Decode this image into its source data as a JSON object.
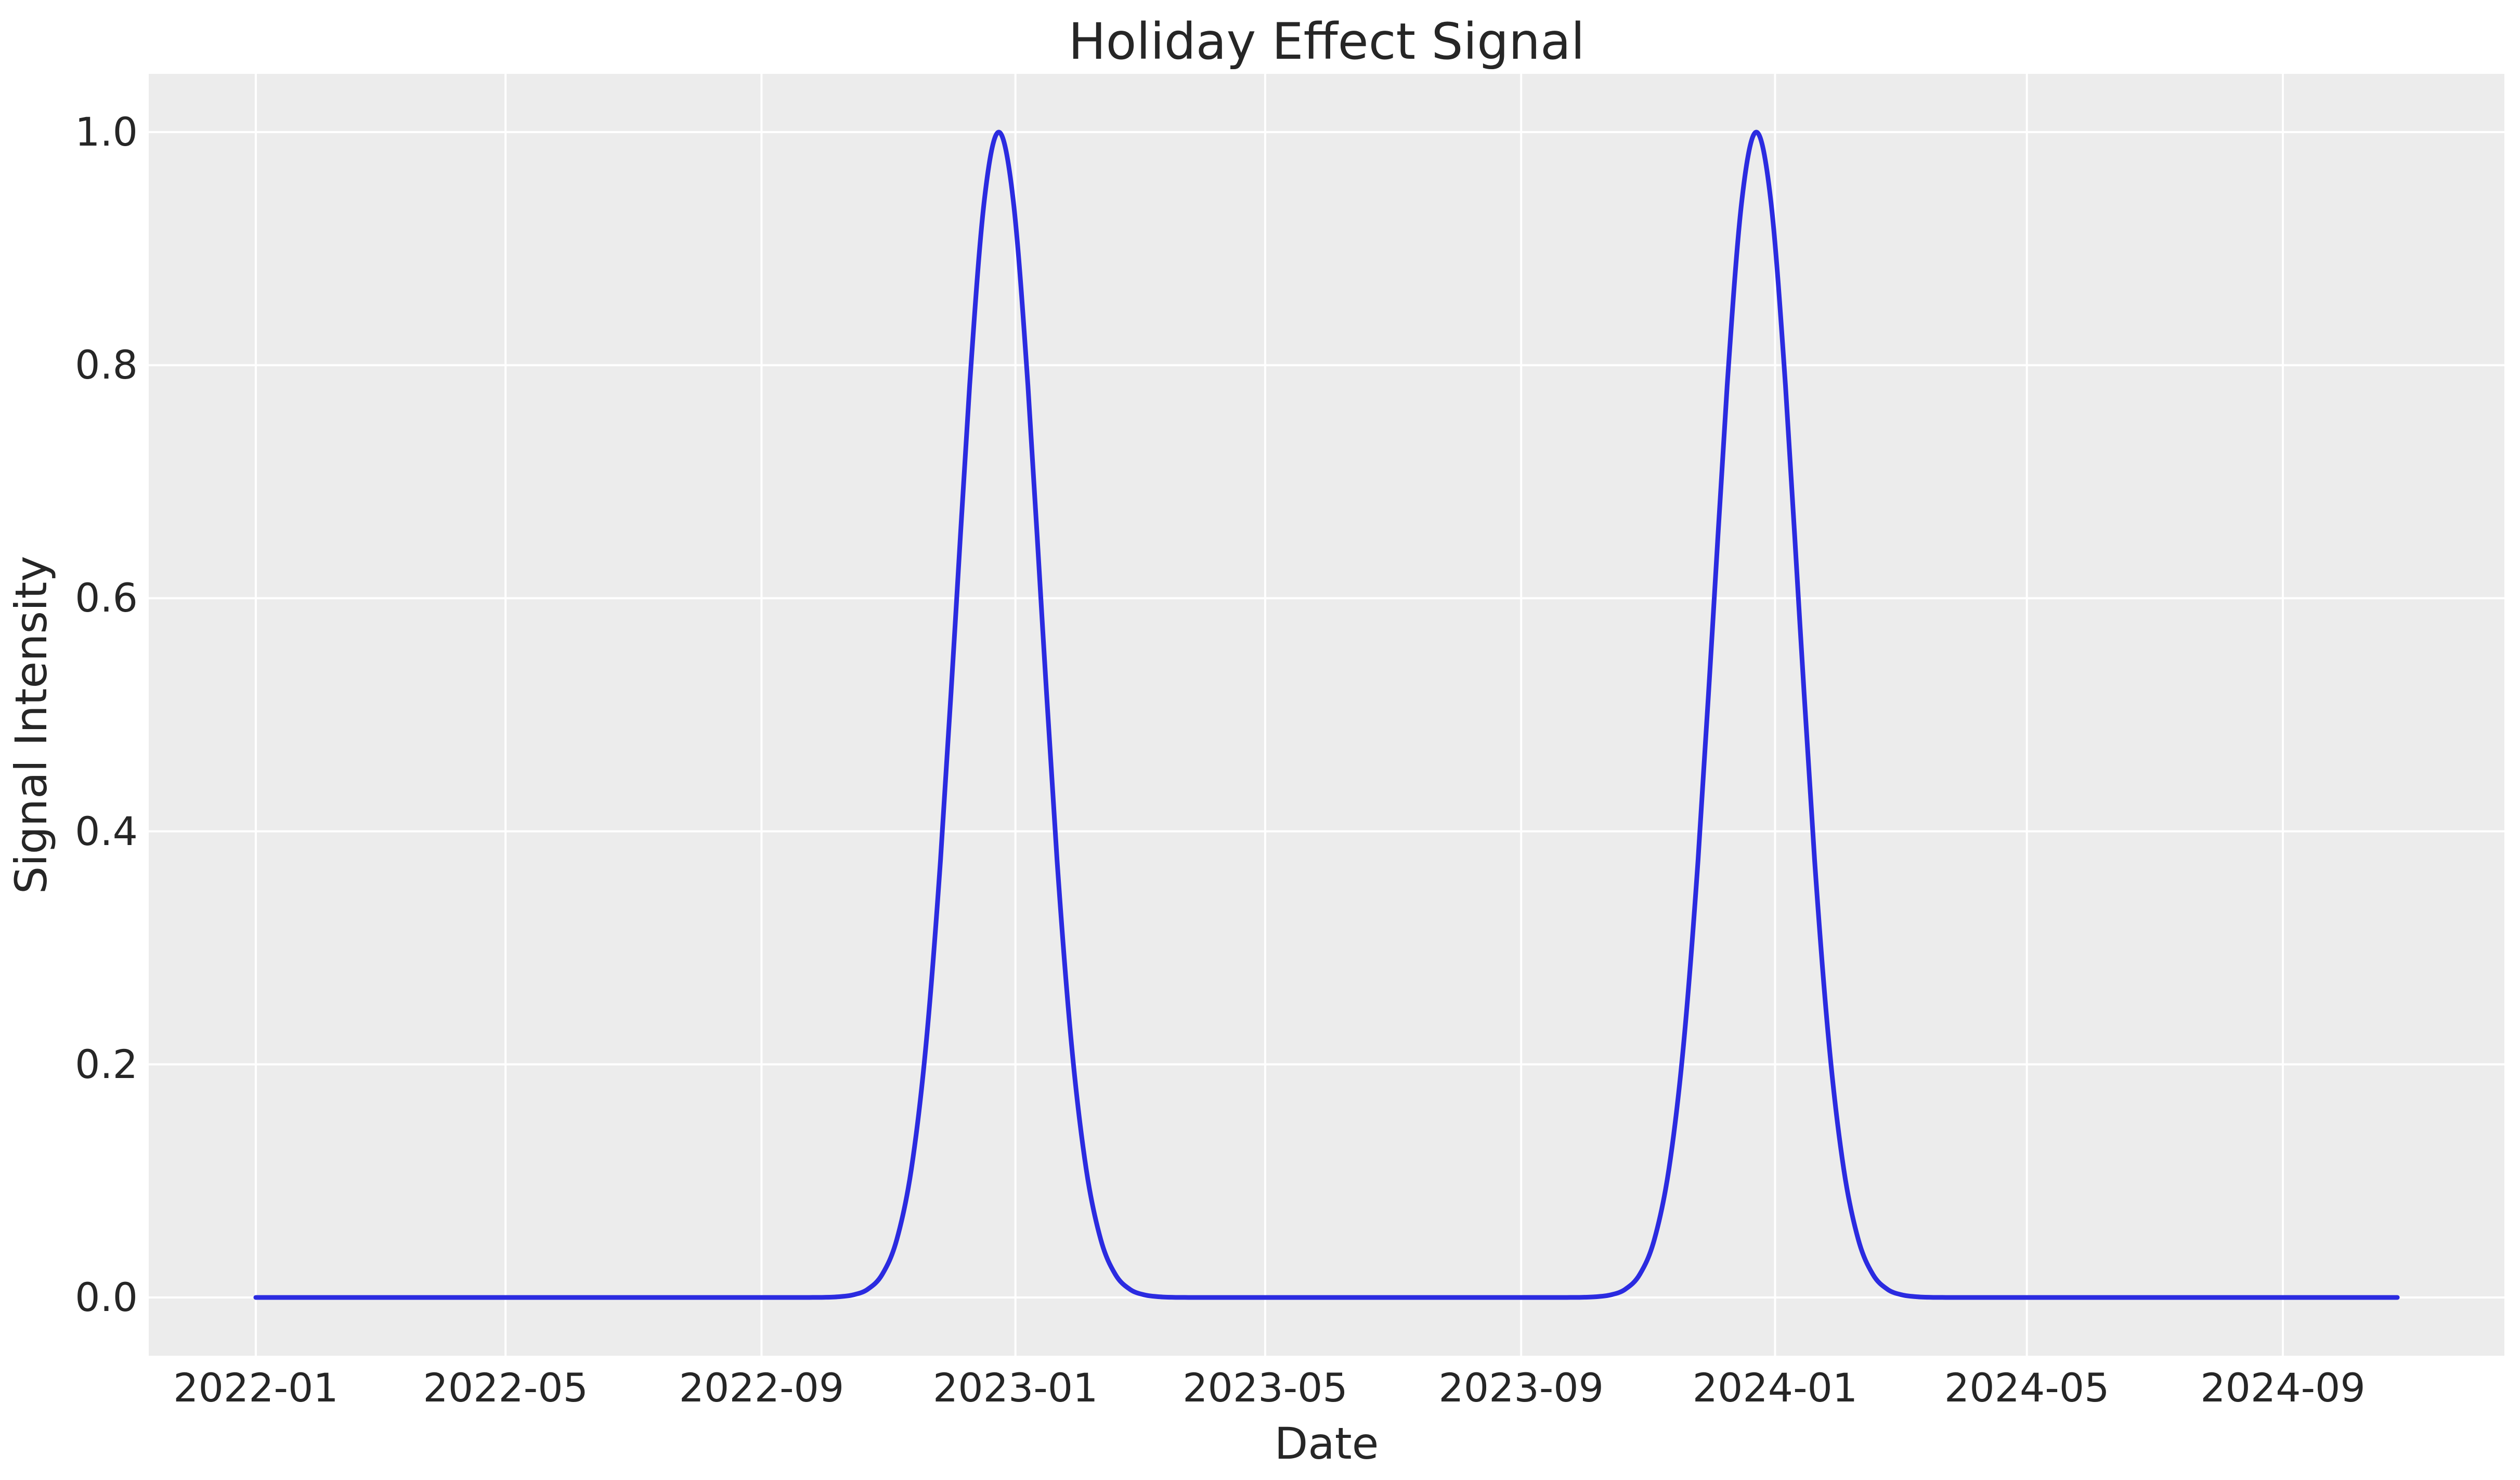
{
  "figure": {
    "title": "Holiday Effect Signal",
    "background_color": "#ffffff",
    "text_color": "#262626"
  },
  "chart_data": {
    "type": "line",
    "title": "Holiday Effect Signal",
    "xlabel": "Date",
    "ylabel": "Signal Intensity",
    "legend": "none",
    "grid": true,
    "grid_color": "#ffffff",
    "plot_background": "#ececec",
    "ylim": [
      -0.05,
      1.05
    ],
    "xlim_days": [
      -51.45,
      1080.45
    ],
    "y_ticks": [
      0.0,
      0.2,
      0.4,
      0.6,
      0.8,
      1.0
    ],
    "y_tick_labels": [
      "0.0",
      "0.2",
      "0.4",
      "0.6",
      "0.8",
      "1.0"
    ],
    "x_tick_days": [
      0,
      120,
      243,
      365,
      485,
      608,
      730,
      851,
      974
    ],
    "x_tick_labels": [
      "2022-01",
      "2022-05",
      "2022-09",
      "2023-01",
      "2023-05",
      "2023-09",
      "2024-01",
      "2024-05",
      "2024-09"
    ],
    "series": [
      {
        "name": "holiday-effect-signal",
        "color": "#2b2be0",
        "line_width": 9,
        "x_start_date": "2022-01-01",
        "x_end_date": "2024-10-26",
        "x_step_days": 7,
        "shape": "gaussian peaks, sigma 20 days, centered near Dec 24 of 2022 and 2023, baseline 0",
        "peaks": [
          {
            "date": "2022-12-24",
            "value": 1.0
          },
          {
            "date": "2023-12-23",
            "value": 1.0
          }
        ],
        "values": [
          0,
          0,
          0,
          0,
          0,
          0,
          0,
          0,
          0,
          0,
          0,
          0,
          0,
          0,
          0,
          0,
          0,
          0,
          0,
          0,
          0,
          0,
          0,
          0,
          0,
          0,
          0,
          0,
          0,
          0,
          0,
          0,
          0,
          0,
          0,
          0,
          0,
          0,
          0,
          0.0001,
          0.0006,
          0.0022,
          0.007,
          0.0198,
          0.0497,
          0.1102,
          0.2162,
          0.3753,
          0.5763,
          0.7827,
          0.9406,
          1.0,
          0.9406,
          0.7827,
          0.5763,
          0.3753,
          0.2162,
          0.1102,
          0.0497,
          0.0198,
          0.007,
          0.0022,
          0.0006,
          0.0001,
          0,
          0,
          0,
          0,
          0,
          0,
          0,
          0,
          0,
          0,
          0,
          0,
          0,
          0,
          0,
          0,
          0,
          0,
          0,
          0,
          0,
          0,
          0,
          0,
          0,
          0,
          0,
          0.0001,
          0.0006,
          0.0022,
          0.007,
          0.0198,
          0.0497,
          0.1102,
          0.2162,
          0.3753,
          0.5763,
          0.7827,
          0.9406,
          1.0,
          0.9406,
          0.7827,
          0.5763,
          0.3753,
          0.2162,
          0.1102,
          0.0497,
          0.0198,
          0.007,
          0.0022,
          0.0006,
          0.0001,
          0,
          0,
          0,
          0,
          0,
          0,
          0,
          0,
          0,
          0,
          0,
          0,
          0,
          0,
          0,
          0,
          0,
          0,
          0,
          0,
          0,
          0,
          0,
          0,
          0,
          0,
          0,
          0,
          0,
          0,
          0,
          0
        ]
      }
    ]
  }
}
